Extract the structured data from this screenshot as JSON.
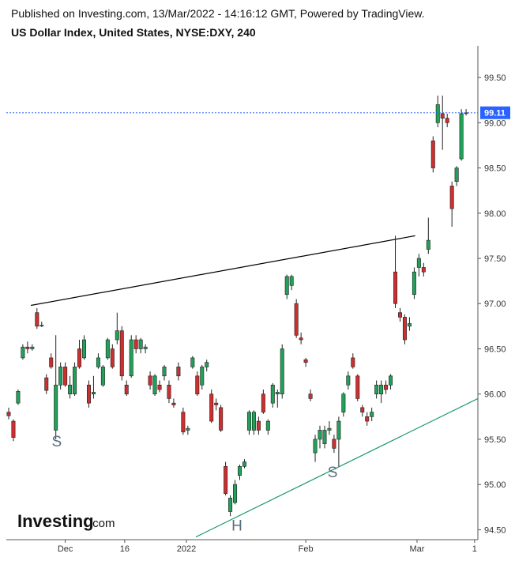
{
  "header": {
    "published": "Published on Investing.com, 13/Mar/2022 - 14:16:12 GMT, Powered by TradingView.",
    "symbol": "US Dollar Index, United States, NYSE:DXY, 240"
  },
  "logo": {
    "brand": "Investing",
    "suffix": ".com"
  },
  "chart_data": {
    "type": "candlestick",
    "open": [
      95.8,
      95.7,
      95.9,
      96.4,
      96.52,
      96.5,
      96.9,
      96.76,
      96.18,
      96.4,
      95.6,
      96.1,
      96.3,
      96.0,
      96.0,
      96.5,
      96.4,
      96.1,
      96.0,
      96.3,
      96.1,
      96.4,
      96.5,
      96.6,
      96.7,
      96.1,
      96.2,
      96.6,
      96.5,
      96.5,
      96.2,
      96.0,
      96.1,
      96.2,
      96.1,
      95.9,
      96.3,
      95.8,
      95.6,
      96.3,
      96.2,
      96.1,
      96.3,
      96.0,
      95.9,
      95.85,
      95.2,
      94.7,
      94.8,
      95.1,
      95.2,
      95.6,
      95.6,
      95.7,
      96.0,
      95.6,
      95.9,
      96.0,
      96.0,
      97.1,
      97.2,
      97.0,
      96.62,
      96.38,
      96.0,
      95.35,
      95.5,
      95.45,
      95.6,
      95.5,
      95.5,
      95.8,
      96.1,
      96.4,
      96.2,
      95.85,
      95.75,
      95.75,
      96.0,
      96.0,
      96.1,
      96.1,
      97.35,
      96.9,
      96.85,
      96.75,
      97.1,
      97.4,
      97.4,
      97.6,
      98.8,
      99.0,
      99.1,
      99.05,
      98.3,
      98.35,
      98.6,
      99.1
    ],
    "high": [
      95.85,
      95.72,
      96.05,
      96.55,
      96.58,
      96.55,
      96.95,
      96.8,
      96.22,
      96.45,
      96.65,
      96.35,
      96.35,
      96.2,
      96.35,
      96.6,
      96.65,
      96.15,
      96.2,
      96.45,
      96.32,
      96.62,
      96.55,
      96.9,
      96.75,
      96.15,
      96.65,
      96.65,
      96.62,
      96.55,
      96.25,
      96.22,
      96.15,
      96.32,
      96.15,
      95.95,
      96.35,
      95.85,
      95.65,
      96.42,
      96.25,
      96.32,
      96.38,
      96.05,
      95.95,
      95.88,
      95.25,
      94.88,
      95.05,
      95.22,
      95.28,
      95.82,
      95.82,
      95.75,
      96.05,
      95.72,
      96.12,
      96.05,
      96.55,
      97.32,
      97.32,
      97.05,
      96.68,
      96.4,
      96.05,
      95.55,
      95.65,
      95.65,
      95.7,
      95.55,
      95.75,
      96.02,
      96.25,
      96.45,
      96.22,
      95.88,
      95.8,
      95.85,
      96.15,
      96.15,
      96.15,
      96.22,
      97.75,
      96.95,
      96.88,
      96.85,
      97.4,
      97.55,
      97.45,
      97.95,
      98.85,
      99.3,
      99.3,
      99.1,
      98.35,
      98.52,
      99.15,
      99.15
    ],
    "low": [
      95.72,
      95.48,
      95.88,
      96.38,
      96.45,
      96.48,
      96.72,
      96.74,
      96.0,
      96.28,
      95.5,
      96.05,
      96.08,
      95.95,
      95.98,
      96.28,
      96.38,
      95.85,
      95.95,
      96.28,
      96.08,
      96.38,
      96.28,
      96.55,
      96.15,
      95.98,
      96.18,
      96.45,
      96.45,
      96.45,
      96.05,
      95.98,
      96.02,
      96.15,
      95.9,
      95.85,
      96.15,
      95.55,
      95.55,
      96.28,
      95.98,
      96.05,
      96.25,
      95.68,
      95.82,
      95.58,
      94.88,
      94.65,
      94.78,
      95.05,
      95.18,
      95.55,
      95.55,
      95.55,
      95.78,
      95.55,
      95.85,
      95.85,
      95.95,
      97.05,
      97.15,
      96.62,
      96.55,
      96.3,
      95.92,
      95.25,
      95.4,
      95.4,
      95.55,
      95.35,
      95.2,
      95.75,
      96.05,
      96.28,
      95.92,
      95.75,
      95.65,
      95.7,
      95.95,
      95.9,
      96.0,
      96.05,
      96.95,
      96.8,
      96.55,
      96.7,
      97.05,
      97.3,
      97.3,
      97.55,
      98.45,
      98.95,
      98.7,
      98.95,
      97.85,
      98.3,
      98.58,
      99.08
    ],
    "close": [
      95.76,
      95.52,
      96.03,
      96.52,
      96.5,
      96.52,
      96.75,
      96.76,
      96.04,
      96.3,
      96.1,
      96.3,
      96.1,
      96.1,
      96.3,
      96.3,
      96.6,
      95.9,
      96.02,
      96.4,
      96.3,
      96.6,
      96.3,
      96.7,
      96.2,
      96.0,
      96.6,
      96.5,
      96.6,
      96.52,
      96.1,
      96.2,
      96.05,
      96.3,
      95.95,
      95.88,
      96.2,
      95.58,
      95.62,
      96.4,
      96.0,
      96.3,
      96.35,
      95.7,
      95.88,
      95.6,
      94.9,
      94.85,
      95.0,
      95.2,
      95.25,
      95.8,
      95.8,
      95.6,
      95.8,
      95.7,
      96.1,
      96.02,
      96.5,
      97.3,
      97.3,
      96.65,
      96.6,
      96.35,
      95.95,
      95.5,
      95.6,
      95.6,
      95.62,
      95.4,
      95.7,
      96.0,
      96.2,
      96.3,
      95.95,
      95.8,
      95.7,
      95.8,
      96.1,
      96.1,
      96.05,
      96.2,
      97.0,
      96.85,
      96.6,
      96.78,
      97.35,
      97.5,
      97.35,
      97.7,
      98.5,
      99.2,
      99.05,
      99.0,
      98.05,
      98.5,
      99.1,
      99.11
    ],
    "up_color": "#22a05a",
    "down_color": "#cc2f2f",
    "xlim": [
      -0.5,
      99.5
    ],
    "xticks": [
      {
        "value": 12,
        "label": "Dec"
      },
      {
        "value": 24.6,
        "label": "16"
      },
      {
        "value": 37.7,
        "label": "2022"
      },
      {
        "value": 63,
        "label": "Feb"
      },
      {
        "value": 86.6,
        "label": "Mar"
      },
      {
        "value": 98.8,
        "label": "1"
      }
    ],
    "ylim": [
      94.39,
      99.85
    ],
    "yticks": [
      {
        "value": 94.5,
        "label": "94.50"
      },
      {
        "value": 95,
        "label": "95.00"
      },
      {
        "value": 95.5,
        "label": "95.50"
      },
      {
        "value": 96,
        "label": "96.00"
      },
      {
        "value": 96.5,
        "label": "96.50"
      },
      {
        "value": 97,
        "label": "97.00"
      },
      {
        "value": 97.5,
        "label": "97.50"
      },
      {
        "value": 98,
        "label": "98.00"
      },
      {
        "value": 98.5,
        "label": "98.50"
      },
      {
        "value": 99,
        "label": "99.00"
      },
      {
        "value": 99.5,
        "label": "99.50"
      }
    ],
    "last_price": 99.11,
    "last_price_color": "#2962ff",
    "trendlines": [
      {
        "color": "#000000",
        "x": [
          4.7,
          86.2
        ],
        "y": [
          96.98,
          97.75
        ]
      },
      {
        "color": "#1a9a6a",
        "x": [
          39.7,
          99.5
        ],
        "y": [
          94.42,
          95.95
        ]
      }
    ],
    "annotations": [
      {
        "text": "S",
        "x": 10.2,
        "y": 95.42
      },
      {
        "text": "H",
        "x": 48.4,
        "y": 94.49
      },
      {
        "text": "S",
        "x": 68.7,
        "y": 95.08
      }
    ]
  }
}
